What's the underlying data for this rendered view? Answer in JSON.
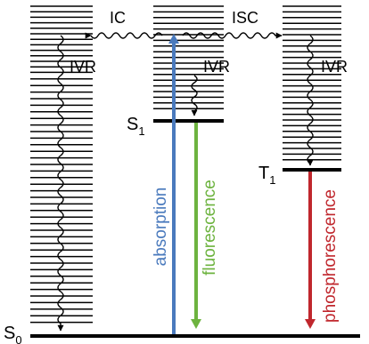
{
  "title": "",
  "states": {
    "S0": {
      "letter": "S",
      "subscript": "0"
    },
    "S1": {
      "letter": "S",
      "subscript": "1"
    },
    "T1": {
      "letter": "T",
      "subscript": "1"
    }
  },
  "processes": {
    "ic": "IC",
    "isc": "ISC",
    "ivr_left": "IVR",
    "ivr_middle": "IVR",
    "ivr_right": "IVR",
    "absorption": "absorption",
    "fluorescence": "fluorescence",
    "phosphorescence": "phosphorescence"
  },
  "colors": {
    "absorption": "#4a7abd",
    "fluorescence": "#6db33f",
    "phosphorescence": "#c0272d",
    "lines": "#000000"
  }
}
